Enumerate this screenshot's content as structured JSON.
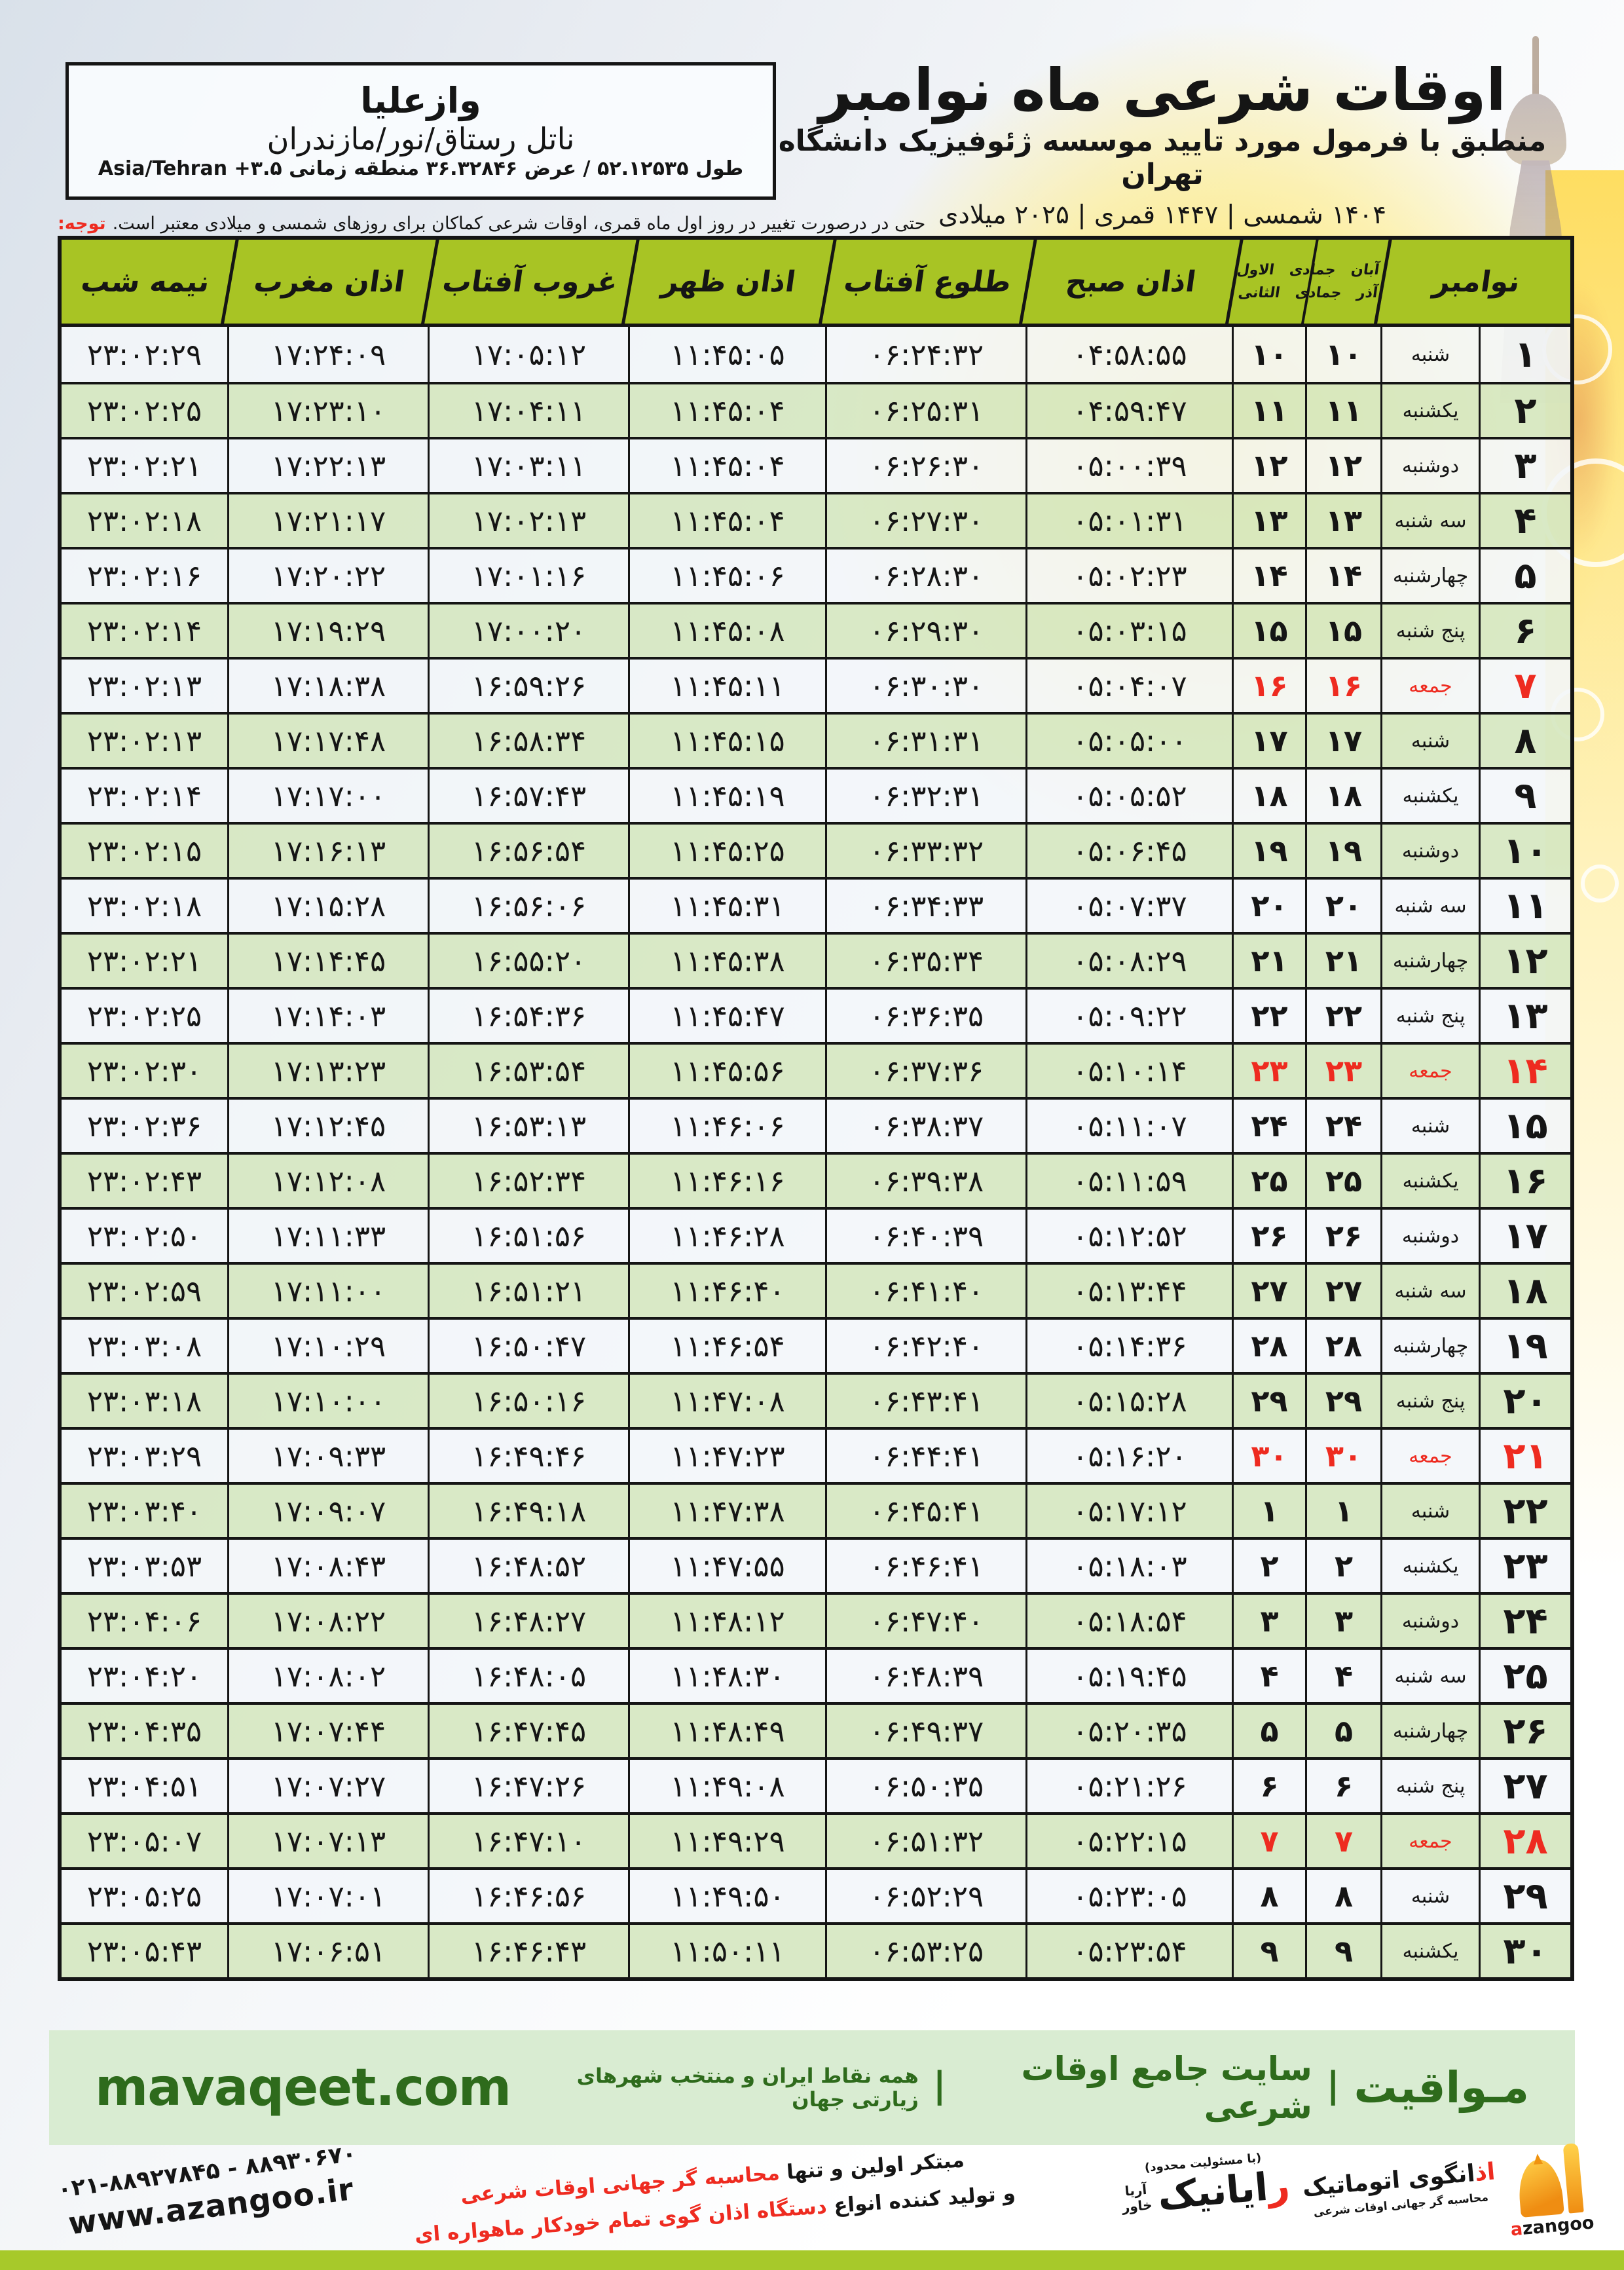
{
  "header": {
    "title": "اوقات شرعی ماه نوامبر",
    "subtitle": "منطبق با فرمول مورد تایید موسسه ژئوفیزیک دانشگاه تهران",
    "date_line": "۱۴۰۴ شمسی | ۱۴۴۷ قمری | ۲۰۲۵ میلادی"
  },
  "location": {
    "name": "وازعلیا",
    "region": "ناتل رستاق/نور/مازندران",
    "coords": "طول ۵۲.۱۲۵۳۵ / عرض ۳۶.۳۲۸۴۶ منطقه زمانی Asia/Tehran +۳.۵"
  },
  "note": {
    "label": "توجه:",
    "text": "حتی در درصورت تغییر در روز اول ماه قمری، اوقات شرعی کماکان برای روزهای شمسی و میلادی معتبر است."
  },
  "table": {
    "headers": {
      "november": "نوامبر",
      "persian_top": "آبان جمادی الاول",
      "persian_bottom": "آذر جمادی الثانی",
      "fajr": "اذان صبح",
      "sunrise": "طلوع آفتاب",
      "dhuhr": "اذان ظهر",
      "sunset": "غروب آفتاب",
      "maghrib": "اذان مغرب",
      "midnight": "نیمه شب"
    },
    "rows": [
      {
        "day": "۱",
        "weekday": "شنبه",
        "aban_azar": "۱۰",
        "jamadi": "۱۰",
        "fajr": "۰۴:۵۸:۵۵",
        "sunrise": "۰۶:۲۴:۳۲",
        "dhuhr": "۱۱:۴۵:۰۵",
        "sunset": "۱۷:۰۵:۱۲",
        "maghrib": "۱۷:۲۴:۰۹",
        "midnight": "۲۳:۰۲:۲۹",
        "friday": false
      },
      {
        "day": "۲",
        "weekday": "یکشنبه",
        "aban_azar": "۱۱",
        "jamadi": "۱۱",
        "fajr": "۰۴:۵۹:۴۷",
        "sunrise": "۰۶:۲۵:۳۱",
        "dhuhr": "۱۱:۴۵:۰۴",
        "sunset": "۱۷:۰۴:۱۱",
        "maghrib": "۱۷:۲۳:۱۰",
        "midnight": "۲۳:۰۲:۲۵",
        "friday": false
      },
      {
        "day": "۳",
        "weekday": "دوشنبه",
        "aban_azar": "۱۲",
        "jamadi": "۱۲",
        "fajr": "۰۵:۰۰:۳۹",
        "sunrise": "۰۶:۲۶:۳۰",
        "dhuhr": "۱۱:۴۵:۰۴",
        "sunset": "۱۷:۰۳:۱۱",
        "maghrib": "۱۷:۲۲:۱۳",
        "midnight": "۲۳:۰۲:۲۱",
        "friday": false
      },
      {
        "day": "۴",
        "weekday": "سه شنبه",
        "aban_azar": "۱۳",
        "jamadi": "۱۳",
        "fajr": "۰۵:۰۱:۳۱",
        "sunrise": "۰۶:۲۷:۳۰",
        "dhuhr": "۱۱:۴۵:۰۴",
        "sunset": "۱۷:۰۲:۱۳",
        "maghrib": "۱۷:۲۱:۱۷",
        "midnight": "۲۳:۰۲:۱۸",
        "friday": false
      },
      {
        "day": "۵",
        "weekday": "چهارشنبه",
        "aban_azar": "۱۴",
        "jamadi": "۱۴",
        "fajr": "۰۵:۰۲:۲۳",
        "sunrise": "۰۶:۲۸:۳۰",
        "dhuhr": "۱۱:۴۵:۰۶",
        "sunset": "۱۷:۰۱:۱۶",
        "maghrib": "۱۷:۲۰:۲۲",
        "midnight": "۲۳:۰۲:۱۶",
        "friday": false
      },
      {
        "day": "۶",
        "weekday": "پنج شنبه",
        "aban_azar": "۱۵",
        "jamadi": "۱۵",
        "fajr": "۰۵:۰۳:۱۵",
        "sunrise": "۰۶:۲۹:۳۰",
        "dhuhr": "۱۱:۴۵:۰۸",
        "sunset": "۱۷:۰۰:۲۰",
        "maghrib": "۱۷:۱۹:۲۹",
        "midnight": "۲۳:۰۲:۱۴",
        "friday": false
      },
      {
        "day": "۷",
        "weekday": "جمعه",
        "aban_azar": "۱۶",
        "jamadi": "۱۶",
        "fajr": "۰۵:۰۴:۰۷",
        "sunrise": "۰۶:۳۰:۳۰",
        "dhuhr": "۱۱:۴۵:۱۱",
        "sunset": "۱۶:۵۹:۲۶",
        "maghrib": "۱۷:۱۸:۳۸",
        "midnight": "۲۳:۰۲:۱۳",
        "friday": true
      },
      {
        "day": "۸",
        "weekday": "شنبه",
        "aban_azar": "۱۷",
        "jamadi": "۱۷",
        "fajr": "۰۵:۰۵:۰۰",
        "sunrise": "۰۶:۳۱:۳۱",
        "dhuhr": "۱۱:۴۵:۱۵",
        "sunset": "۱۶:۵۸:۳۴",
        "maghrib": "۱۷:۱۷:۴۸",
        "midnight": "۲۳:۰۲:۱۳",
        "friday": false
      },
      {
        "day": "۹",
        "weekday": "یکشنبه",
        "aban_azar": "۱۸",
        "jamadi": "۱۸",
        "fajr": "۰۵:۰۵:۵۲",
        "sunrise": "۰۶:۳۲:۳۱",
        "dhuhr": "۱۱:۴۵:۱۹",
        "sunset": "۱۶:۵۷:۴۳",
        "maghrib": "۱۷:۱۷:۰۰",
        "midnight": "۲۳:۰۲:۱۴",
        "friday": false
      },
      {
        "day": "۱۰",
        "weekday": "دوشنبه",
        "aban_azar": "۱۹",
        "jamadi": "۱۹",
        "fajr": "۰۵:۰۶:۴۵",
        "sunrise": "۰۶:۳۳:۳۲",
        "dhuhr": "۱۱:۴۵:۲۵",
        "sunset": "۱۶:۵۶:۵۴",
        "maghrib": "۱۷:۱۶:۱۳",
        "midnight": "۲۳:۰۲:۱۵",
        "friday": false
      },
      {
        "day": "۱۱",
        "weekday": "سه شنبه",
        "aban_azar": "۲۰",
        "jamadi": "۲۰",
        "fajr": "۰۵:۰۷:۳۷",
        "sunrise": "۰۶:۳۴:۳۳",
        "dhuhr": "۱۱:۴۵:۳۱",
        "sunset": "۱۶:۵۶:۰۶",
        "maghrib": "۱۷:۱۵:۲۸",
        "midnight": "۲۳:۰۲:۱۸",
        "friday": false
      },
      {
        "day": "۱۲",
        "weekday": "چهارشنبه",
        "aban_azar": "۲۱",
        "jamadi": "۲۱",
        "fajr": "۰۵:۰۸:۲۹",
        "sunrise": "۰۶:۳۵:۳۴",
        "dhuhr": "۱۱:۴۵:۳۸",
        "sunset": "۱۶:۵۵:۲۰",
        "maghrib": "۱۷:۱۴:۴۵",
        "midnight": "۲۳:۰۲:۲۱",
        "friday": false
      },
      {
        "day": "۱۳",
        "weekday": "پنج شنبه",
        "aban_azar": "۲۲",
        "jamadi": "۲۲",
        "fajr": "۰۵:۰۹:۲۲",
        "sunrise": "۰۶:۳۶:۳۵",
        "dhuhr": "۱۱:۴۵:۴۷",
        "sunset": "۱۶:۵۴:۳۶",
        "maghrib": "۱۷:۱۴:۰۳",
        "midnight": "۲۳:۰۲:۲۵",
        "friday": false
      },
      {
        "day": "۱۴",
        "weekday": "جمعه",
        "aban_azar": "۲۳",
        "jamadi": "۲۳",
        "fajr": "۰۵:۱۰:۱۴",
        "sunrise": "۰۶:۳۷:۳۶",
        "dhuhr": "۱۱:۴۵:۵۶",
        "sunset": "۱۶:۵۳:۵۴",
        "maghrib": "۱۷:۱۳:۲۳",
        "midnight": "۲۳:۰۲:۳۰",
        "friday": true
      },
      {
        "day": "۱۵",
        "weekday": "شنبه",
        "aban_azar": "۲۴",
        "jamadi": "۲۴",
        "fajr": "۰۵:۱۱:۰۷",
        "sunrise": "۰۶:۳۸:۳۷",
        "dhuhr": "۱۱:۴۶:۰۶",
        "sunset": "۱۶:۵۳:۱۳",
        "maghrib": "۱۷:۱۲:۴۵",
        "midnight": "۲۳:۰۲:۳۶",
        "friday": false
      },
      {
        "day": "۱۶",
        "weekday": "یکشنبه",
        "aban_azar": "۲۵",
        "jamadi": "۲۵",
        "fajr": "۰۵:۱۱:۵۹",
        "sunrise": "۰۶:۳۹:۳۸",
        "dhuhr": "۱۱:۴۶:۱۶",
        "sunset": "۱۶:۵۲:۳۴",
        "maghrib": "۱۷:۱۲:۰۸",
        "midnight": "۲۳:۰۲:۴۳",
        "friday": false
      },
      {
        "day": "۱۷",
        "weekday": "دوشنبه",
        "aban_azar": "۲۶",
        "jamadi": "۲۶",
        "fajr": "۰۵:۱۲:۵۲",
        "sunrise": "۰۶:۴۰:۳۹",
        "dhuhr": "۱۱:۴۶:۲۸",
        "sunset": "۱۶:۵۱:۵۶",
        "maghrib": "۱۷:۱۱:۳۳",
        "midnight": "۲۳:۰۲:۵۰",
        "friday": false
      },
      {
        "day": "۱۸",
        "weekday": "سه شنبه",
        "aban_azar": "۲۷",
        "jamadi": "۲۷",
        "fajr": "۰۵:۱۳:۴۴",
        "sunrise": "۰۶:۴۱:۴۰",
        "dhuhr": "۱۱:۴۶:۴۰",
        "sunset": "۱۶:۵۱:۲۱",
        "maghrib": "۱۷:۱۱:۰۰",
        "midnight": "۲۳:۰۲:۵۹",
        "friday": false
      },
      {
        "day": "۱۹",
        "weekday": "چهارشنبه",
        "aban_azar": "۲۸",
        "jamadi": "۲۸",
        "fajr": "۰۵:۱۴:۳۶",
        "sunrise": "۰۶:۴۲:۴۰",
        "dhuhr": "۱۱:۴۶:۵۴",
        "sunset": "۱۶:۵۰:۴۷",
        "maghrib": "۱۷:۱۰:۲۹",
        "midnight": "۲۳:۰۳:۰۸",
        "friday": false
      },
      {
        "day": "۲۰",
        "weekday": "پنج شنبه",
        "aban_azar": "۲۹",
        "jamadi": "۲۹",
        "fajr": "۰۵:۱۵:۲۸",
        "sunrise": "۰۶:۴۳:۴۱",
        "dhuhr": "۱۱:۴۷:۰۸",
        "sunset": "۱۶:۵۰:۱۶",
        "maghrib": "۱۷:۱۰:۰۰",
        "midnight": "۲۳:۰۳:۱۸",
        "friday": false
      },
      {
        "day": "۲۱",
        "weekday": "جمعه",
        "aban_azar": "۳۰",
        "jamadi": "۳۰",
        "fajr": "۰۵:۱۶:۲۰",
        "sunrise": "۰۶:۴۴:۴۱",
        "dhuhr": "۱۱:۴۷:۲۳",
        "sunset": "۱۶:۴۹:۴۶",
        "maghrib": "۱۷:۰۹:۳۳",
        "midnight": "۲۳:۰۳:۲۹",
        "friday": true
      },
      {
        "day": "۲۲",
        "weekday": "شنبه",
        "aban_azar": "۱",
        "jamadi": "۱",
        "fajr": "۰۵:۱۷:۱۲",
        "sunrise": "۰۶:۴۵:۴۱",
        "dhuhr": "۱۱:۴۷:۳۸",
        "sunset": "۱۶:۴۹:۱۸",
        "maghrib": "۱۷:۰۹:۰۷",
        "midnight": "۲۳:۰۳:۴۰",
        "friday": false
      },
      {
        "day": "۲۳",
        "weekday": "یکشنبه",
        "aban_azar": "۲",
        "jamadi": "۲",
        "fajr": "۰۵:۱۸:۰۳",
        "sunrise": "۰۶:۴۶:۴۱",
        "dhuhr": "۱۱:۴۷:۵۵",
        "sunset": "۱۶:۴۸:۵۲",
        "maghrib": "۱۷:۰۸:۴۳",
        "midnight": "۲۳:۰۳:۵۳",
        "friday": false
      },
      {
        "day": "۲۴",
        "weekday": "دوشنبه",
        "aban_azar": "۳",
        "jamadi": "۳",
        "fajr": "۰۵:۱۸:۵۴",
        "sunrise": "۰۶:۴۷:۴۰",
        "dhuhr": "۱۱:۴۸:۱۲",
        "sunset": "۱۶:۴۸:۲۷",
        "maghrib": "۱۷:۰۸:۲۲",
        "midnight": "۲۳:۰۴:۰۶",
        "friday": false
      },
      {
        "day": "۲۵",
        "weekday": "سه شنبه",
        "aban_azar": "۴",
        "jamadi": "۴",
        "fajr": "۰۵:۱۹:۴۵",
        "sunrise": "۰۶:۴۸:۳۹",
        "dhuhr": "۱۱:۴۸:۳۰",
        "sunset": "۱۶:۴۸:۰۵",
        "maghrib": "۱۷:۰۸:۰۲",
        "midnight": "۲۳:۰۴:۲۰",
        "friday": false
      },
      {
        "day": "۲۶",
        "weekday": "چهارشنبه",
        "aban_azar": "۵",
        "jamadi": "۵",
        "fajr": "۰۵:۲۰:۳۵",
        "sunrise": "۰۶:۴۹:۳۷",
        "dhuhr": "۱۱:۴۸:۴۹",
        "sunset": "۱۶:۴۷:۴۵",
        "maghrib": "۱۷:۰۷:۴۴",
        "midnight": "۲۳:۰۴:۳۵",
        "friday": false
      },
      {
        "day": "۲۷",
        "weekday": "پنج شنبه",
        "aban_azar": "۶",
        "jamadi": "۶",
        "fajr": "۰۵:۲۱:۲۶",
        "sunrise": "۰۶:۵۰:۳۵",
        "dhuhr": "۱۱:۴۹:۰۸",
        "sunset": "۱۶:۴۷:۲۶",
        "maghrib": "۱۷:۰۷:۲۷",
        "midnight": "۲۳:۰۴:۵۱",
        "friday": false
      },
      {
        "day": "۲۸",
        "weekday": "جمعه",
        "aban_azar": "۷",
        "jamadi": "۷",
        "fajr": "۰۵:۲۲:۱۵",
        "sunrise": "۰۶:۵۱:۳۲",
        "dhuhr": "۱۱:۴۹:۲۹",
        "sunset": "۱۶:۴۷:۱۰",
        "maghrib": "۱۷:۰۷:۱۳",
        "midnight": "۲۳:۰۵:۰۷",
        "friday": true
      },
      {
        "day": "۲۹",
        "weekday": "شنبه",
        "aban_azar": "۸",
        "jamadi": "۸",
        "fajr": "۰۵:۲۳:۰۵",
        "sunrise": "۰۶:۵۲:۲۹",
        "dhuhr": "۱۱:۴۹:۵۰",
        "sunset": "۱۶:۴۶:۵۶",
        "maghrib": "۱۷:۰۷:۰۱",
        "midnight": "۲۳:۰۵:۲۵",
        "friday": false
      },
      {
        "day": "۳۰",
        "weekday": "یکشنبه",
        "aban_azar": "۹",
        "jamadi": "۹",
        "fajr": "۰۵:۲۳:۵۴",
        "sunrise": "۰۶:۵۳:۲۵",
        "dhuhr": "۱۱:۵۰:۱۱",
        "sunset": "۱۶:۴۶:۴۳",
        "maghrib": "۱۷:۰۶:۵۱",
        "midnight": "۲۳:۰۵:۴۳",
        "friday": false
      }
    ]
  },
  "footer": {
    "mavaqeet": {
      "brand": "مـواقیت",
      "sep": "|",
      "tagline": "سایت جامع اوقات شرعی",
      "subtitle": "همه نقاط ایران و منتخب شهرهای زیارتی جهان",
      "domain": "mavaqeet.com"
    },
    "bottom": {
      "phone": "۰۲۱-۸۸۹۲۷۸۴۵ - ۸۸۹۳۰۶۷۰",
      "website": "www.azangoo.ir",
      "line1_black": "مبتکر اولین و تنها",
      "line1_red": "محاسبه گر جهانی اوقات شرعی",
      "line2_black": "و تولید کننده انواع",
      "line2_red": "دستگاه اذان گوی تمام خودکار ماهواره ای",
      "rayanik_small": "(با مسئولیت محدود)",
      "rayanik_red": "ر",
      "rayanik_rest": "ایانیک",
      "rayanik_sub1": "آریا",
      "rayanik_sub2": "خاور",
      "azangoo_title_red": "اذ",
      "azangoo_title_rest": "انگوی اتوماتیک",
      "azangoo_sub": "محاسبه گر جهانی اوقات شرعی",
      "azangoo_latin_red": "a",
      "azangoo_latin_rest": "zangoo"
    }
  },
  "colors": {
    "header_green": "#a8c424",
    "row_green": "#d6e7c2",
    "row_white": "#f3f6f9",
    "red": "#ee2b20",
    "footer_green_bg": "#d9ecd2",
    "footer_green_text": "#2e6b1c",
    "bottom_bar": "#a7c92a"
  }
}
